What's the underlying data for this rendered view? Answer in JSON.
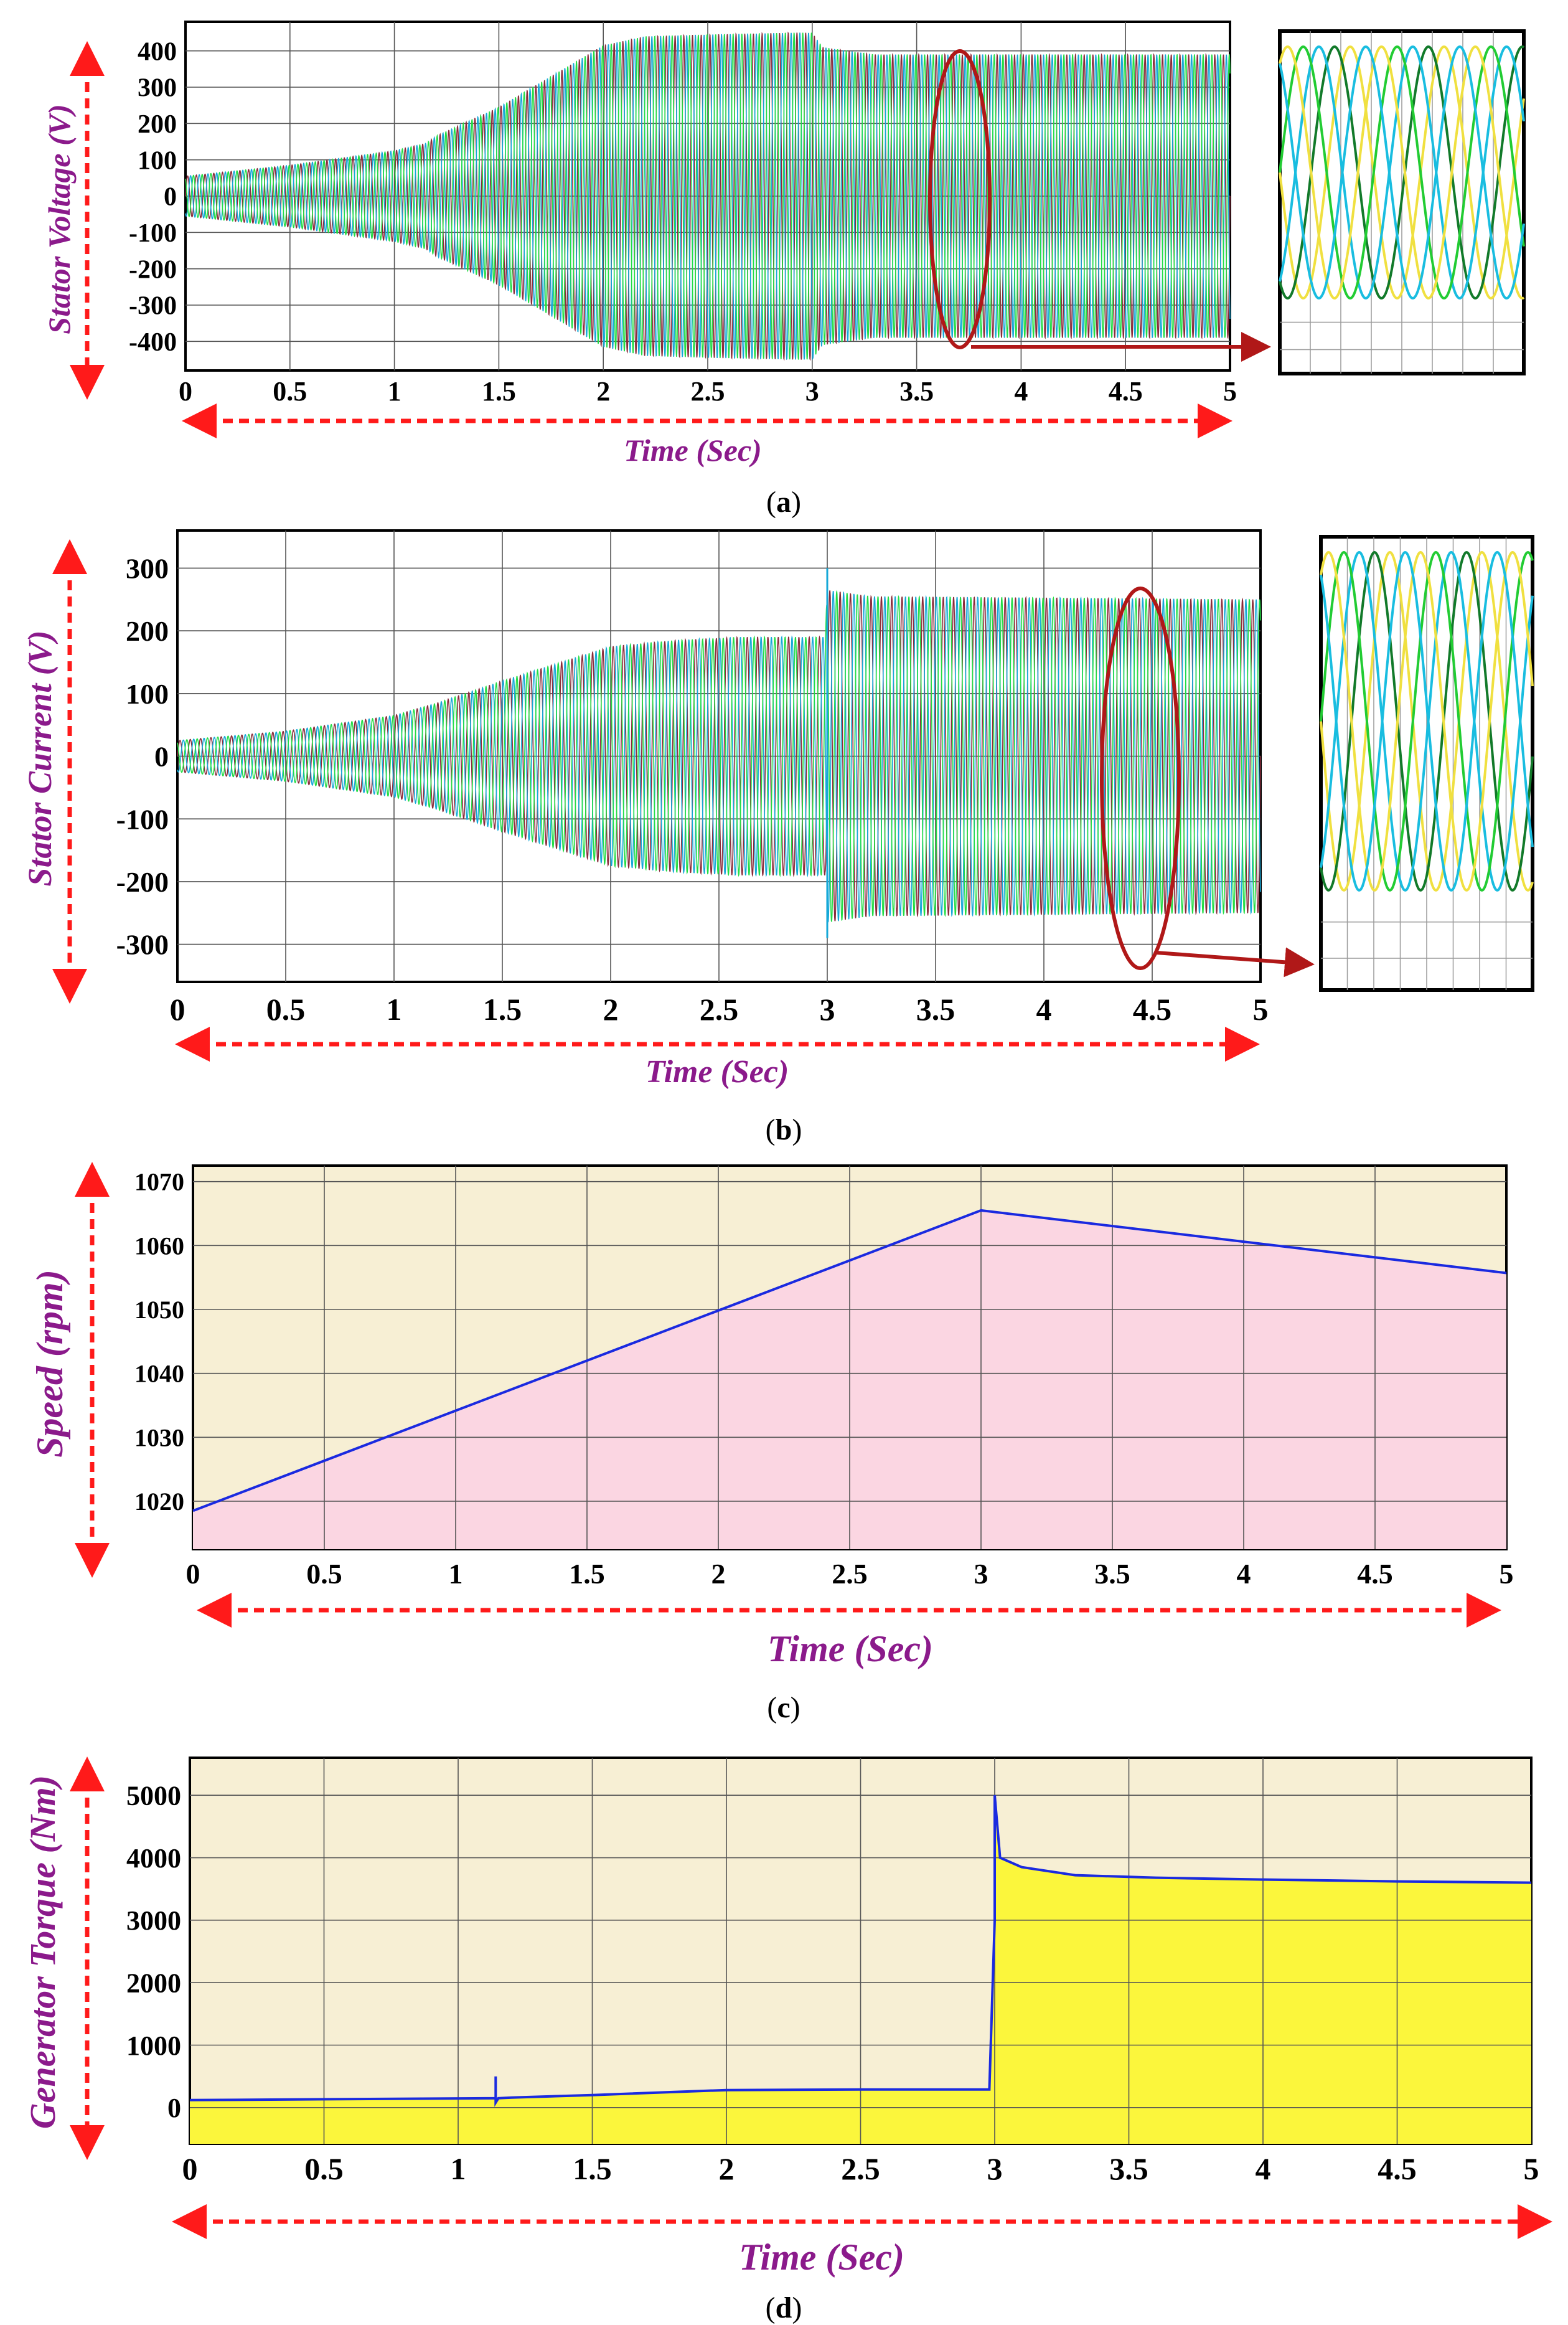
{
  "colors": {
    "phase_a": "#22dd44",
    "phase_b": "#8a2a3a",
    "phase_c": "#16a8d8",
    "zoom_yellow": "#f0e040",
    "zoom_darkgreen": "#127a2a",
    "zoom_green": "#22cc33",
    "zoom_cyan": "#19bde0",
    "trace_blue": "#1a2ae0",
    "panel_bg": "#f7efd4",
    "fill_pink": "#fbd6e2",
    "fill_yellow": "#fbf63c",
    "label_purple": "#8b1a8b",
    "arrow_red": "#ff1a1a",
    "ellipse_red": "#b01818"
  },
  "charts": [
    {
      "caption_letter": "a",
      "chart_data": {
        "type": "line",
        "ylabel": "Stator Voltage (V)",
        "xlabel": "Time (Sec)",
        "xlim": [
          0,
          5
        ],
        "ylim": [
          -480,
          480
        ],
        "x_ticks": [
          "0",
          "0.5",
          "1",
          "1.5",
          "2",
          "2.5",
          "3",
          "3.5",
          "4",
          "4.5",
          "5"
        ],
        "y_ticks": [
          "400",
          "300",
          "200",
          "100",
          "0",
          "-100",
          "-200",
          "-300",
          "-400"
        ],
        "y_tick_values": [
          400,
          300,
          200,
          100,
          0,
          -100,
          -200,
          -300,
          -400
        ],
        "envelope": {
          "x": [
            0,
            0.5,
            1.0,
            1.15,
            1.2,
            1.5,
            1.75,
            2.0,
            2.2,
            2.5,
            2.9,
            3.0,
            3.05,
            3.3,
            5.0
          ],
          "amplitude": [
            55,
            85,
            125,
            145,
            165,
            245,
            330,
            415,
            440,
            445,
            450,
            450,
            410,
            390,
            390
          ]
        },
        "grid": true,
        "inset": "three-phase zoom",
        "zoom_region_x": 3.7
      }
    },
    {
      "caption_letter": "b",
      "chart_data": {
        "type": "line",
        "ylabel": "Stator Current (V)",
        "xlabel": "Time (Sec)",
        "xlim": [
          0,
          5
        ],
        "ylim": [
          -360,
          360
        ],
        "x_ticks": [
          "0",
          "0.5",
          "1",
          "1.5",
          "2",
          "2.5",
          "3",
          "3.5",
          "4",
          "4.5",
          "5"
        ],
        "y_ticks": [
          "300",
          "200",
          "100",
          "0",
          "-100",
          "-200",
          "-300"
        ],
        "y_tick_values": [
          300,
          200,
          100,
          0,
          -100,
          -200,
          -300
        ],
        "envelope": {
          "x": [
            0,
            0.5,
            1.0,
            1.15,
            1.2,
            1.5,
            2.0,
            2.3,
            2.6,
            2.99,
            3.0,
            3.2,
            5.0
          ],
          "amplitude": [
            25,
            40,
            65,
            80,
            85,
            120,
            175,
            185,
            190,
            190,
            265,
            255,
            250
          ]
        },
        "spikes": [
          {
            "x": 3.0,
            "top": 300,
            "bottom": -290
          }
        ],
        "grid": true,
        "inset": "three-phase zoom",
        "zoom_region_x": 4.45
      }
    },
    {
      "caption_letter": "c",
      "chart_data": {
        "type": "area",
        "ylabel": "Speed (rpm)",
        "xlabel": "Time (Sec)",
        "xlim": [
          0,
          5
        ],
        "ylim": [
          1012.5,
          1072.5
        ],
        "x_ticks": [
          "0",
          "0.5",
          "1",
          "1.5",
          "2",
          "2.5",
          "3",
          "3.5",
          "4",
          "4.5",
          "5"
        ],
        "y_ticks": [
          "1070",
          "1060",
          "1050",
          "1040",
          "1030",
          "1020"
        ],
        "y_tick_values": [
          1070,
          1060,
          1050,
          1040,
          1030,
          1020
        ],
        "series": [
          {
            "x": [
              0,
              3,
              5
            ],
            "values": [
              1018.5,
              1065.5,
              1055.7
            ]
          }
        ],
        "grid": true
      }
    },
    {
      "caption_letter": "d",
      "chart_data": {
        "type": "area",
        "ylabel": "Generator Torque (Nm)",
        "xlabel": "Time (Sec)",
        "xlim": [
          0,
          5
        ],
        "ylim": [
          -580,
          5600
        ],
        "x_ticks": [
          "0",
          "0.5",
          "1",
          "1.5",
          "2",
          "2.5",
          "3",
          "3.5",
          "4",
          "4.5",
          "5"
        ],
        "y_ticks": [
          "5000",
          "4000",
          "3000",
          "2000",
          "1000",
          "0"
        ],
        "y_tick_values": [
          5000,
          4000,
          3000,
          2000,
          1000,
          0
        ],
        "series": [
          {
            "x": [
              0,
              1.14,
              1.14,
              1.14,
              1.15,
              1.2,
              1.5,
              2.0,
              2.5,
              2.98,
              3.0,
              3.0,
              3.02,
              3.1,
              3.3,
              3.6,
              4.0,
              4.5,
              5.0
            ],
            "values": [
              120,
              150,
              500,
              80,
              150,
              160,
              200,
              280,
              290,
              290,
              3000,
              5000,
              4000,
              3850,
              3720,
              3680,
              3650,
              3620,
              3600
            ]
          }
        ],
        "grid": true
      }
    }
  ]
}
